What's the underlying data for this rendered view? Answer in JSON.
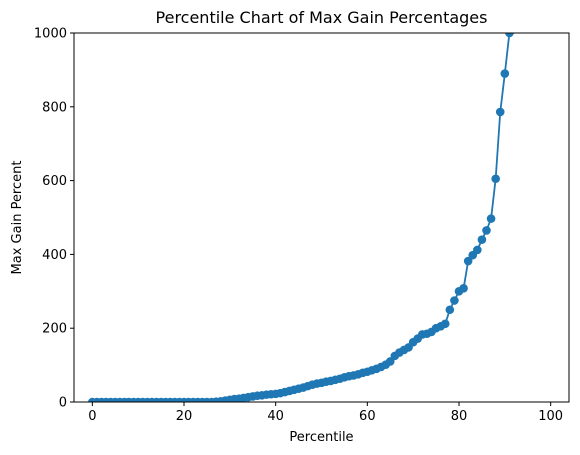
{
  "chart_data": {
    "type": "line",
    "title": "Percentile Chart of Max Gain Percentages",
    "xlabel": "Percentile",
    "ylabel": "Max Gain Percent",
    "xlim": [
      -4,
      104
    ],
    "ylim": [
      0,
      1000
    ],
    "xticks": [
      0,
      20,
      40,
      60,
      80,
      100
    ],
    "yticks": [
      0,
      200,
      400,
      600,
      800,
      1000
    ],
    "grid": false,
    "markers": "circle",
    "color": "#1f77b4",
    "series": [
      {
        "x": [
          0,
          1,
          2,
          3,
          4,
          5,
          6,
          7,
          8,
          9,
          10,
          11,
          12,
          13,
          14,
          15,
          16,
          17,
          18,
          19,
          20,
          21,
          22,
          23,
          24,
          25,
          26,
          27,
          28,
          29,
          30,
          31,
          32,
          33,
          34,
          35,
          36,
          37,
          38,
          39,
          40,
          41,
          42,
          43,
          44,
          45,
          46,
          47,
          48,
          49,
          50,
          51,
          52,
          53,
          54,
          55,
          56,
          57,
          58,
          59,
          60,
          61,
          62,
          63,
          64,
          65,
          66,
          67,
          68,
          69,
          70,
          71,
          72,
          73,
          74,
          75,
          76,
          77,
          78,
          79,
          80,
          81,
          82,
          83,
          84,
          85,
          86,
          87,
          88,
          89,
          90,
          91,
          92
        ],
        "y": [
          0,
          0,
          0,
          0,
          0,
          0,
          0,
          0,
          0,
          0,
          0,
          0,
          0,
          0,
          0,
          0,
          0,
          0,
          0,
          0,
          0,
          0,
          0,
          0,
          0,
          0,
          0,
          1,
          2,
          4,
          6,
          8,
          9,
          11,
          13,
          15,
          17,
          18,
          20,
          21,
          22,
          24,
          27,
          30,
          33,
          36,
          39,
          43,
          47,
          50,
          52,
          55,
          57,
          60,
          63,
          67,
          70,
          72,
          75,
          79,
          82,
          86,
          90,
          95,
          101,
          110,
          125,
          134,
          141,
          148,
          162,
          172,
          183,
          185,
          190,
          200,
          205,
          212,
          250,
          275,
          300,
          308,
          382,
          398,
          412,
          440,
          465,
          497,
          605,
          786,
          890,
          1000,
          1010
        ]
      }
    ]
  }
}
